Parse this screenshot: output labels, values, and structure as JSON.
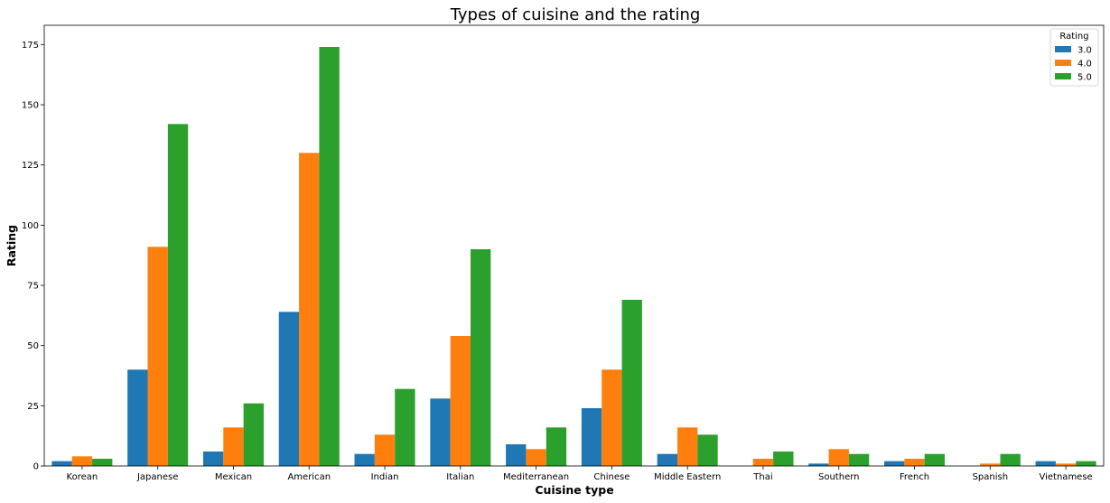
{
  "chart_data": {
    "type": "bar",
    "title": "Types of cuisine and the rating",
    "xlabel": "Cuisine type",
    "ylabel": "Rating",
    "ylim": [
      0,
      183
    ],
    "yticks": [
      0,
      25,
      50,
      75,
      100,
      125,
      150,
      175
    ],
    "grid": false,
    "legend": {
      "title": "Rating",
      "placement": "top-right"
    },
    "categories": [
      "Korean",
      "Japanese",
      "Mexican",
      "American",
      "Indian",
      "Italian",
      "Mediterranean",
      "Chinese",
      "Middle Eastern",
      "Thai",
      "Southern",
      "French",
      "Spanish",
      "Vietnamese"
    ],
    "series": [
      {
        "name": "3.0",
        "color": "#1f77b4",
        "values": [
          2,
          40,
          6,
          64,
          5,
          28,
          9,
          24,
          5,
          0,
          1,
          2,
          0,
          2
        ]
      },
      {
        "name": "4.0",
        "color": "#ff7f0e",
        "values": [
          4,
          91,
          16,
          130,
          13,
          54,
          7,
          40,
          16,
          3,
          7,
          3,
          1,
          1
        ]
      },
      {
        "name": "5.0",
        "color": "#2ca02c",
        "values": [
          3,
          142,
          26,
          174,
          32,
          90,
          16,
          69,
          13,
          6,
          5,
          5,
          5,
          2
        ]
      }
    ]
  }
}
